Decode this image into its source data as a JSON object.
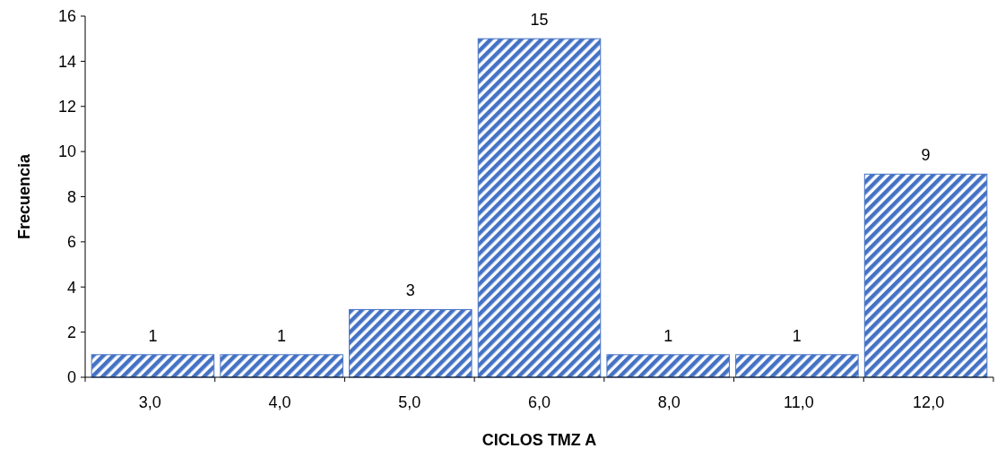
{
  "chart_data": {
    "type": "bar",
    "xlabel": "CICLOS TMZ A",
    "ylabel": "Frecuencia",
    "categories": [
      "3,0",
      "4,0",
      "5,0",
      "6,0",
      "8,0",
      "11,0",
      "12,0"
    ],
    "values": [
      1,
      1,
      3,
      15,
      1,
      1,
      9
    ],
    "color": "#4472c4",
    "ylim": [
      0,
      16
    ],
    "yticks": [
      0,
      2,
      4,
      6,
      8,
      10,
      12,
      14,
      16
    ],
    "grid": false,
    "data_labels": true
  }
}
